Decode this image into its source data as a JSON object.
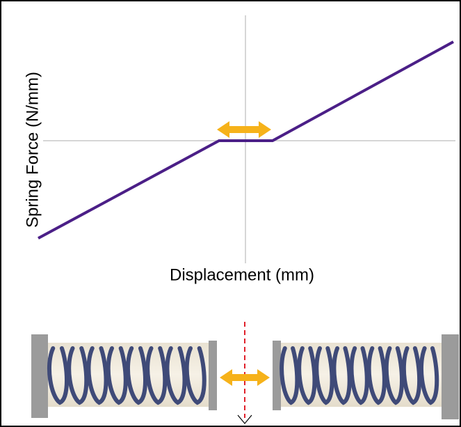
{
  "graph": {
    "y_label": "Spring Force (N/mm)",
    "x_label": "Displacement (mm)"
  }
}
